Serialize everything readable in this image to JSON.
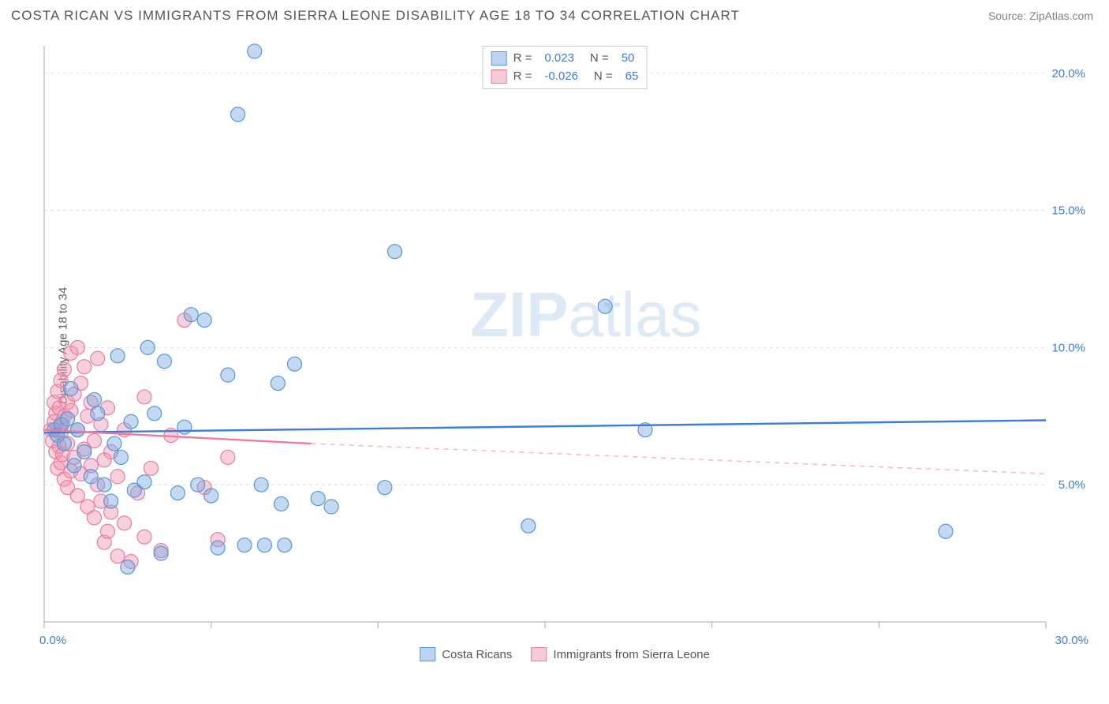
{
  "header": {
    "title": "COSTA RICAN VS IMMIGRANTS FROM SIERRA LEONE DISABILITY AGE 18 TO 34 CORRELATION CHART",
    "source": "Source: ZipAtlas.com"
  },
  "watermark": {
    "zip": "ZIP",
    "atlas": "atlas"
  },
  "chart": {
    "type": "scatter",
    "background_color": "#ffffff",
    "grid_color": "#dddddd",
    "axis_color": "#aaaaaa",
    "label_color": "#3b7dd8",
    "y_axis_title": "Disability Age 18 to 34",
    "xlim": [
      0,
      30
    ],
    "ylim": [
      0,
      21
    ],
    "x_ticks": [
      {
        "val": 0,
        "label": "0.0%"
      },
      {
        "val": 30,
        "label": "30.0%"
      }
    ],
    "y_ticks": [
      {
        "val": 5,
        "label": "5.0%"
      },
      {
        "val": 10,
        "label": "10.0%"
      },
      {
        "val": 15,
        "label": "15.0%"
      },
      {
        "val": 20,
        "label": "20.0%"
      }
    ],
    "x_inner_ticks": [
      5,
      10,
      15,
      20,
      25
    ],
    "marker_radius": 9,
    "series": {
      "blue": {
        "name": "Costa Ricans",
        "fill": "rgba(120,170,225,0.45)",
        "stroke": "#5a96d6",
        "R": "0.023",
        "N": "50",
        "regression": {
          "x1": 0,
          "y1": 6.9,
          "x2": 30,
          "y2": 7.35,
          "color": "#3b7dd8"
        },
        "points": [
          [
            0.3,
            7.0
          ],
          [
            0.4,
            6.8
          ],
          [
            0.5,
            7.2
          ],
          [
            0.6,
            6.5
          ],
          [
            0.7,
            7.4
          ],
          [
            0.8,
            8.5
          ],
          [
            0.9,
            5.7
          ],
          [
            1.0,
            7.0
          ],
          [
            1.2,
            6.2
          ],
          [
            1.4,
            5.3
          ],
          [
            1.5,
            8.1
          ],
          [
            1.6,
            7.6
          ],
          [
            1.8,
            5.0
          ],
          [
            2.0,
            4.4
          ],
          [
            2.1,
            6.5
          ],
          [
            2.2,
            9.7
          ],
          [
            2.3,
            6.0
          ],
          [
            2.5,
            2.0
          ],
          [
            2.6,
            7.3
          ],
          [
            2.7,
            4.8
          ],
          [
            3.0,
            5.1
          ],
          [
            3.1,
            10.0
          ],
          [
            3.3,
            7.6
          ],
          [
            3.5,
            2.5
          ],
          [
            3.6,
            9.5
          ],
          [
            4.0,
            4.7
          ],
          [
            4.2,
            7.1
          ],
          [
            4.4,
            11.2
          ],
          [
            4.6,
            5.0
          ],
          [
            4.8,
            11.0
          ],
          [
            5.0,
            4.6
          ],
          [
            5.2,
            2.7
          ],
          [
            5.5,
            9.0
          ],
          [
            5.8,
            18.5
          ],
          [
            6.0,
            2.8
          ],
          [
            6.3,
            20.8
          ],
          [
            6.5,
            5.0
          ],
          [
            6.6,
            2.8
          ],
          [
            7.0,
            8.7
          ],
          [
            7.1,
            4.3
          ],
          [
            7.2,
            2.8
          ],
          [
            7.5,
            9.4
          ],
          [
            8.2,
            4.5
          ],
          [
            8.6,
            4.2
          ],
          [
            10.2,
            4.9
          ],
          [
            10.5,
            13.5
          ],
          [
            14.5,
            3.5
          ],
          [
            16.8,
            11.5
          ],
          [
            18.0,
            7.0
          ],
          [
            27.0,
            3.3
          ]
        ]
      },
      "pink": {
        "name": "Immigrants from Sierra Leone",
        "fill": "rgba(240,150,180,0.45)",
        "stroke": "#e87da0",
        "R": "-0.026",
        "N": "65",
        "regression_solid": {
          "x1": 0,
          "y1": 7.0,
          "x2": 8,
          "y2": 6.5,
          "color": "#e87da0"
        },
        "regression_dash": {
          "x1": 8,
          "y1": 6.5,
          "x2": 30,
          "y2": 5.4,
          "color": "#f4b7c9"
        },
        "points": [
          [
            0.2,
            7.0
          ],
          [
            0.25,
            6.6
          ],
          [
            0.3,
            7.3
          ],
          [
            0.3,
            8.0
          ],
          [
            0.35,
            6.2
          ],
          [
            0.35,
            7.6
          ],
          [
            0.4,
            5.6
          ],
          [
            0.4,
            7.0
          ],
          [
            0.4,
            8.4
          ],
          [
            0.45,
            6.4
          ],
          [
            0.45,
            7.8
          ],
          [
            0.5,
            5.8
          ],
          [
            0.5,
            6.9
          ],
          [
            0.5,
            8.8
          ],
          [
            0.55,
            6.1
          ],
          [
            0.55,
            7.2
          ],
          [
            0.6,
            5.2
          ],
          [
            0.6,
            7.5
          ],
          [
            0.6,
            9.2
          ],
          [
            0.7,
            4.9
          ],
          [
            0.7,
            6.5
          ],
          [
            0.7,
            8.0
          ],
          [
            0.8,
            5.5
          ],
          [
            0.8,
            7.7
          ],
          [
            0.8,
            9.8
          ],
          [
            0.9,
            6.0
          ],
          [
            0.9,
            8.3
          ],
          [
            1.0,
            4.6
          ],
          [
            1.0,
            7.0
          ],
          [
            1.0,
            10.0
          ],
          [
            1.1,
            5.4
          ],
          [
            1.1,
            8.7
          ],
          [
            1.2,
            6.3
          ],
          [
            1.2,
            9.3
          ],
          [
            1.3,
            4.2
          ],
          [
            1.3,
            7.5
          ],
          [
            1.4,
            5.7
          ],
          [
            1.4,
            8.0
          ],
          [
            1.5,
            3.8
          ],
          [
            1.5,
            6.6
          ],
          [
            1.6,
            5.0
          ],
          [
            1.6,
            9.6
          ],
          [
            1.7,
            4.4
          ],
          [
            1.7,
            7.2
          ],
          [
            1.8,
            2.9
          ],
          [
            1.8,
            5.9
          ],
          [
            1.9,
            3.3
          ],
          [
            1.9,
            7.8
          ],
          [
            2.0,
            4.0
          ],
          [
            2.0,
            6.2
          ],
          [
            2.2,
            2.4
          ],
          [
            2.2,
            5.3
          ],
          [
            2.4,
            3.6
          ],
          [
            2.4,
            7.0
          ],
          [
            2.6,
            2.2
          ],
          [
            2.8,
            4.7
          ],
          [
            3.0,
            3.1
          ],
          [
            3.0,
            8.2
          ],
          [
            3.2,
            5.6
          ],
          [
            3.5,
            2.6
          ],
          [
            3.8,
            6.8
          ],
          [
            4.2,
            11.0
          ],
          [
            4.8,
            4.9
          ],
          [
            5.2,
            3.0
          ],
          [
            5.5,
            6.0
          ]
        ]
      }
    }
  },
  "legend_top": {
    "rows": [
      {
        "swatch": "blue",
        "r_label": "R =",
        "r_val_key": "chart.series.blue.R",
        "n_label": "N =",
        "n_val_key": "chart.series.blue.N"
      },
      {
        "swatch": "pink",
        "r_label": "R =",
        "r_val_key": "chart.series.pink.R",
        "n_label": "N =",
        "n_val_key": "chart.series.pink.N"
      }
    ]
  },
  "legend_bottom": [
    {
      "swatch": "blue",
      "key": "chart.series.blue.name"
    },
    {
      "swatch": "pink",
      "key": "chart.series.pink.name"
    }
  ]
}
